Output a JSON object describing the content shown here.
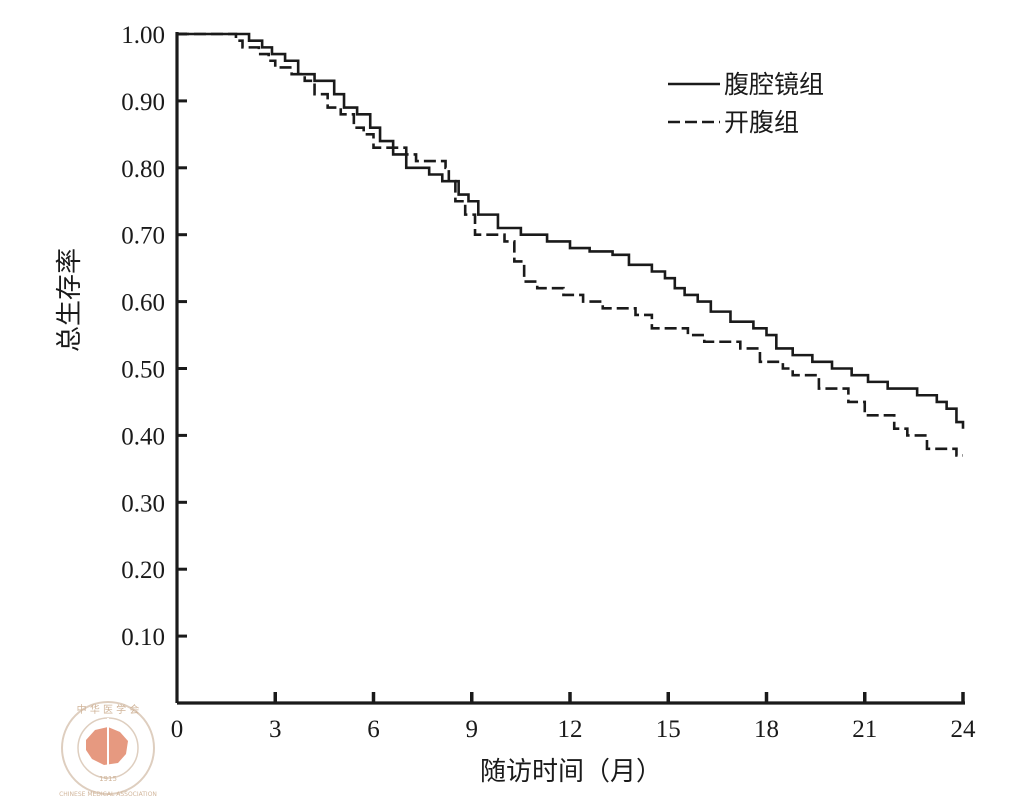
{
  "chart_data": {
    "type": "line",
    "step": true,
    "ylabel": "总生存率",
    "xlabel": "随访时间（月）",
    "xlim": [
      0,
      24
    ],
    "ylim": [
      0,
      1.0
    ],
    "x_ticks": [
      0,
      3,
      6,
      9,
      12,
      15,
      18,
      21,
      24
    ],
    "x_tick_labels": [
      "0",
      "3",
      "6",
      "9",
      "12",
      "15",
      "18",
      "21",
      "24"
    ],
    "y_ticks": [
      0.1,
      0.2,
      0.3,
      0.4,
      0.5,
      0.6,
      0.7,
      0.8,
      0.9,
      1.0
    ],
    "y_tick_labels": [
      "0.10",
      "0.20",
      "0.30",
      "0.40",
      "0.50",
      "0.60",
      "0.70",
      "0.80",
      "0.90",
      "1.00"
    ],
    "grid": false,
    "legend_position": "top-right",
    "series": [
      {
        "name": "腹腔镜组",
        "style": "solid",
        "points": [
          [
            0,
            1.0
          ],
          [
            2.2,
            0.99
          ],
          [
            2.6,
            0.98
          ],
          [
            2.9,
            0.97
          ],
          [
            3.3,
            0.96
          ],
          [
            3.7,
            0.94
          ],
          [
            4.2,
            0.93
          ],
          [
            4.8,
            0.91
          ],
          [
            5.1,
            0.89
          ],
          [
            5.5,
            0.88
          ],
          [
            5.9,
            0.86
          ],
          [
            6.2,
            0.84
          ],
          [
            6.6,
            0.82
          ],
          [
            7.0,
            0.8
          ],
          [
            7.7,
            0.79
          ],
          [
            8.1,
            0.78
          ],
          [
            8.6,
            0.76
          ],
          [
            8.9,
            0.75
          ],
          [
            9.2,
            0.73
          ],
          [
            9.8,
            0.71
          ],
          [
            10.5,
            0.7
          ],
          [
            11.3,
            0.69
          ],
          [
            12.0,
            0.68
          ],
          [
            12.6,
            0.675
          ],
          [
            13.3,
            0.67
          ],
          [
            13.8,
            0.655
          ],
          [
            14.5,
            0.645
          ],
          [
            14.9,
            0.635
          ],
          [
            15.2,
            0.62
          ],
          [
            15.5,
            0.61
          ],
          [
            15.9,
            0.6
          ],
          [
            16.3,
            0.585
          ],
          [
            16.9,
            0.57
          ],
          [
            17.6,
            0.56
          ],
          [
            18.0,
            0.55
          ],
          [
            18.3,
            0.53
          ],
          [
            18.8,
            0.52
          ],
          [
            19.4,
            0.51
          ],
          [
            20.0,
            0.5
          ],
          [
            20.6,
            0.49
          ],
          [
            21.1,
            0.48
          ],
          [
            21.7,
            0.47
          ],
          [
            22.6,
            0.46
          ],
          [
            23.2,
            0.45
          ],
          [
            23.5,
            0.44
          ],
          [
            23.8,
            0.42
          ],
          [
            24.0,
            0.41
          ]
        ]
      },
      {
        "name": "开腹组",
        "style": "dashed",
        "points": [
          [
            0,
            1.0
          ],
          [
            1.8,
            0.99
          ],
          [
            2.0,
            0.98
          ],
          [
            2.5,
            0.97
          ],
          [
            2.8,
            0.96
          ],
          [
            3.0,
            0.95
          ],
          [
            3.5,
            0.94
          ],
          [
            3.9,
            0.93
          ],
          [
            4.2,
            0.91
          ],
          [
            4.6,
            0.89
          ],
          [
            5.0,
            0.88
          ],
          [
            5.4,
            0.86
          ],
          [
            5.7,
            0.85
          ],
          [
            6.0,
            0.83
          ],
          [
            7.0,
            0.82
          ],
          [
            7.3,
            0.81
          ],
          [
            8.2,
            0.8
          ],
          [
            8.3,
            0.78
          ],
          [
            8.5,
            0.75
          ],
          [
            8.8,
            0.73
          ],
          [
            9.1,
            0.7
          ],
          [
            10.0,
            0.69
          ],
          [
            10.3,
            0.66
          ],
          [
            10.6,
            0.63
          ],
          [
            11.0,
            0.62
          ],
          [
            11.8,
            0.61
          ],
          [
            12.4,
            0.6
          ],
          [
            13.0,
            0.59
          ],
          [
            14.0,
            0.58
          ],
          [
            14.5,
            0.56
          ],
          [
            15.6,
            0.55
          ],
          [
            16.1,
            0.54
          ],
          [
            17.2,
            0.53
          ],
          [
            17.8,
            0.51
          ],
          [
            18.5,
            0.5
          ],
          [
            18.8,
            0.49
          ],
          [
            19.6,
            0.47
          ],
          [
            20.5,
            0.45
          ],
          [
            21.0,
            0.43
          ],
          [
            21.9,
            0.41
          ],
          [
            22.3,
            0.4
          ],
          [
            22.9,
            0.38
          ],
          [
            23.8,
            0.37
          ],
          [
            24.0,
            0.37
          ]
        ]
      }
    ]
  },
  "watermark": {
    "top_text": "中 华 医 学 会",
    "bottom_text": "CHINESE MEDICAL ASSOCIATION",
    "year": "1915",
    "color": "#e2886b"
  }
}
